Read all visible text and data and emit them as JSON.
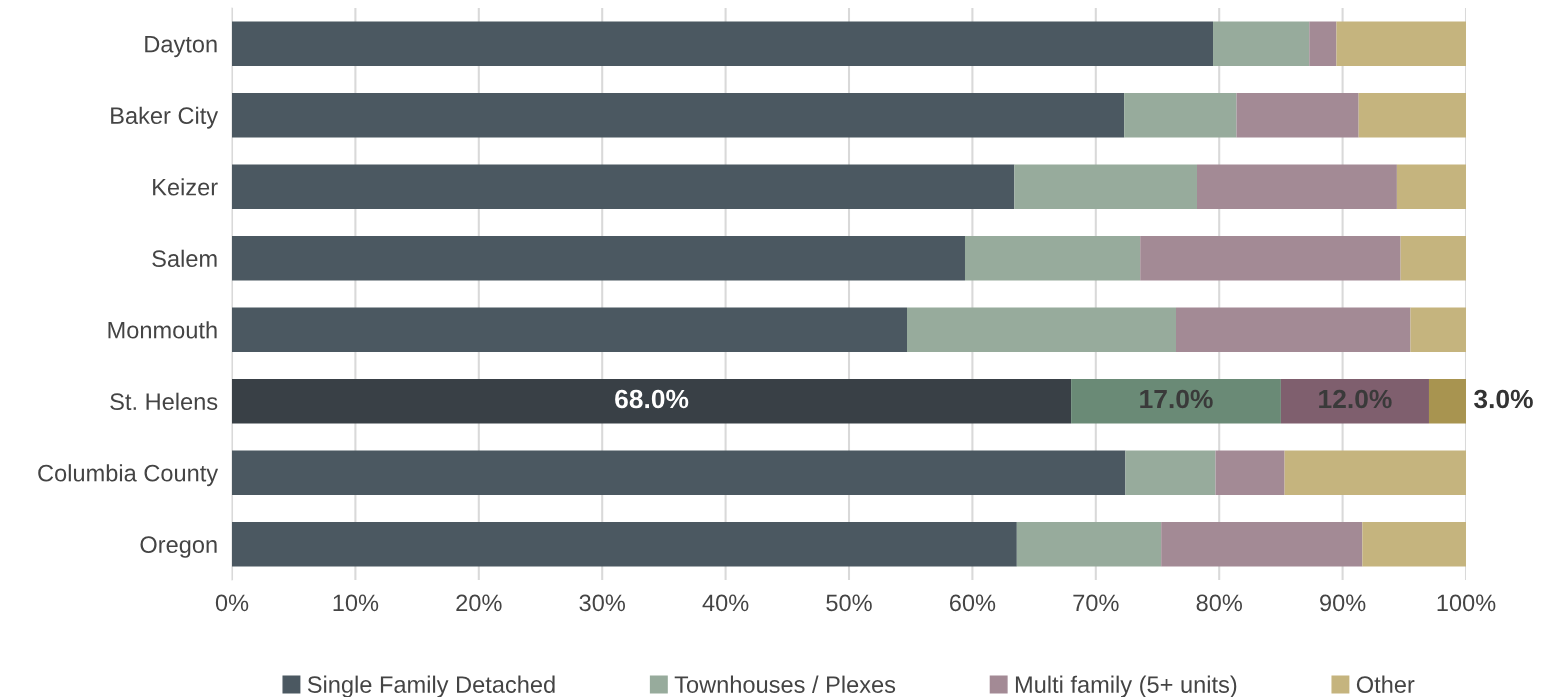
{
  "chart_data": {
    "type": "bar",
    "orientation": "horizontal",
    "stacked": true,
    "categories": [
      "Dayton",
      "Baker City",
      "Keizer",
      "Salem",
      "Monmouth",
      "St. Helens",
      "Columbia County",
      "Oregon"
    ],
    "series": [
      {
        "name": "Single Family Detached",
        "color": "#4b5861",
        "colors": [
          "#4b5861",
          "#4b5861",
          "#4b5861",
          "#4b5861",
          "#4b5861",
          "#394046",
          "#4b5861",
          "#4b5861"
        ],
        "values": [
          79.5,
          72.3,
          63.4,
          59.4,
          54.7,
          68.0,
          72.4,
          63.6
        ],
        "value_labels": [
          null,
          null,
          null,
          null,
          null,
          "68.0%",
          null,
          null
        ]
      },
      {
        "name": "Townhouses / Plexes",
        "color": "#97ab9c",
        "colors": [
          "#97ab9c",
          "#97ab9c",
          "#97ab9c",
          "#97ab9c",
          "#97ab9c",
          "#6a8a76",
          "#97ab9c",
          "#97ab9c"
        ],
        "values": [
          7.8,
          9.1,
          14.8,
          14.2,
          21.8,
          17.0,
          7.3,
          11.7
        ],
        "value_labels": [
          null,
          null,
          null,
          null,
          null,
          "17.0%",
          null,
          null
        ]
      },
      {
        "name": "Multi family (5+ units)",
        "color": "#a38a95",
        "colors": [
          "#a38a95",
          "#a38a95",
          "#a38a95",
          "#a38a95",
          "#a38a95",
          "#7f5f6e",
          "#a38a95",
          "#a38a95"
        ],
        "values": [
          2.2,
          9.9,
          16.2,
          21.1,
          19.0,
          12.0,
          5.6,
          16.3
        ],
        "value_labels": [
          null,
          null,
          null,
          null,
          null,
          "12.0%",
          null,
          null
        ]
      },
      {
        "name": "Other",
        "color": "#c5b47e",
        "colors": [
          "#c5b47e",
          "#c5b47e",
          "#c5b47e",
          "#c5b47e",
          "#c5b47e",
          "#a89450",
          "#c5b47e",
          "#c5b47e"
        ],
        "values": [
          10.5,
          8.7,
          5.6,
          5.3,
          4.5,
          3.0,
          14.7,
          8.4
        ],
        "value_labels": [
          null,
          null,
          null,
          null,
          null,
          "3.0%",
          null,
          null
        ]
      }
    ],
    "xlim": [
      0,
      100
    ],
    "xticks": [
      {
        "value": 0,
        "label": "0%"
      },
      {
        "value": 10,
        "label": "10%"
      },
      {
        "value": 20,
        "label": "20%"
      },
      {
        "value": 30,
        "label": "30%"
      },
      {
        "value": 40,
        "label": "40%"
      },
      {
        "value": 50,
        "label": "50%"
      },
      {
        "value": 60,
        "label": "60%"
      },
      {
        "value": 70,
        "label": "70%"
      },
      {
        "value": 80,
        "label": "80%"
      },
      {
        "value": 90,
        "label": "90%"
      },
      {
        "value": 100,
        "label": "100%"
      }
    ],
    "grid": "x",
    "legend": "bottom"
  }
}
